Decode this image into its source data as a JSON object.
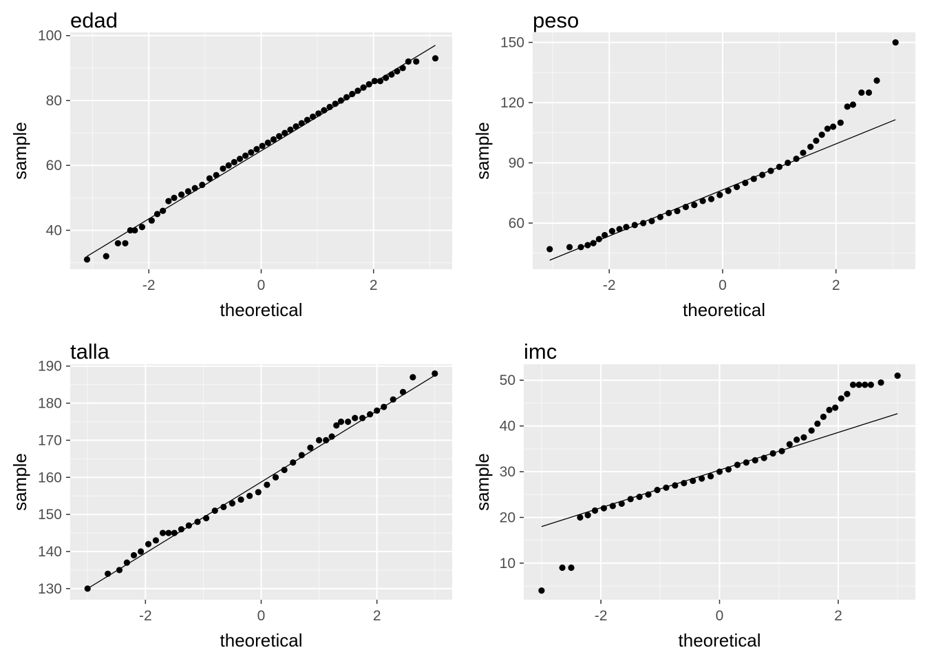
{
  "chart_data": [
    {
      "type": "scatter",
      "title": "edad",
      "xlabel": "theoretical",
      "ylabel": "sample",
      "xlim": [
        -3.4,
        3.4
      ],
      "ylim": [
        28,
        101
      ],
      "xticks": [
        -2,
        0,
        2
      ],
      "xtick_labels": [
        "-2",
        "0",
        "2"
      ],
      "yticks": [
        40,
        60,
        80,
        100
      ],
      "ytick_labels": [
        "40",
        "60",
        "80",
        "100"
      ],
      "grid": true,
      "line": {
        "x": [
          -3.1,
          3.1
        ],
        "y": [
          32,
          97
        ]
      },
      "points": {
        "x": [
          -3.1,
          -2.76,
          -2.55,
          -2.42,
          -2.33,
          -2.25,
          -2.12,
          -1.95,
          -1.85,
          -1.75,
          -1.65,
          -1.55,
          -1.42,
          -1.3,
          -1.18,
          -1.05,
          -0.92,
          -0.8,
          -0.68,
          -0.58,
          -0.48,
          -0.38,
          -0.28,
          -0.18,
          -0.08,
          0.02,
          0.12,
          0.22,
          0.32,
          0.42,
          0.52,
          0.62,
          0.72,
          0.82,
          0.92,
          1.02,
          1.12,
          1.22,
          1.32,
          1.42,
          1.52,
          1.62,
          1.72,
          1.82,
          1.92,
          2.02,
          2.12,
          2.22,
          2.32,
          2.42,
          2.52,
          2.62,
          2.76,
          3.1
        ],
        "y": [
          31,
          32,
          36,
          36,
          40,
          40,
          41,
          43,
          45,
          46,
          49,
          50,
          51,
          52,
          53,
          54,
          56,
          57,
          59,
          60,
          61,
          62,
          63,
          64,
          65,
          66,
          67,
          68,
          69,
          70,
          71,
          72,
          73,
          74,
          75,
          76,
          77,
          78,
          79,
          80,
          81,
          82,
          83,
          84,
          85,
          86,
          86,
          87,
          88,
          89,
          90,
          92,
          92,
          93
        ]
      }
    },
    {
      "type": "scatter",
      "title": "peso",
      "xlabel": "theoretical",
      "ylabel": "sample",
      "xlim": [
        -3.35,
        3.4
      ],
      "ylim": [
        37,
        155
      ],
      "xticks": [
        -2,
        0,
        2
      ],
      "xtick_labels": [
        "-2",
        "0",
        "2"
      ],
      "yticks": [
        60,
        90,
        120,
        150
      ],
      "ytick_labels": [
        "60",
        "90",
        "120",
        "150"
      ],
      "grid": true,
      "line": {
        "x": [
          -3.05,
          3.05
        ],
        "y": [
          41.5,
          111.5
        ]
      },
      "points": {
        "x": [
          -3.05,
          -2.7,
          -2.5,
          -2.38,
          -2.28,
          -2.18,
          -2.08,
          -1.95,
          -1.82,
          -1.7,
          -1.55,
          -1.4,
          -1.25,
          -1.1,
          -0.95,
          -0.8,
          -0.65,
          -0.5,
          -0.35,
          -0.2,
          -0.05,
          0.1,
          0.25,
          0.4,
          0.55,
          0.7,
          0.85,
          1.0,
          1.15,
          1.3,
          1.42,
          1.55,
          1.65,
          1.75,
          1.85,
          1.95,
          2.08,
          2.2,
          2.3,
          2.45,
          2.58,
          2.72,
          3.05
        ],
        "y": [
          47,
          48,
          48,
          49,
          50,
          52,
          54,
          56,
          57,
          58,
          59,
          60,
          61,
          63,
          65,
          66,
          68,
          69,
          71,
          72,
          74,
          76,
          78,
          80,
          82,
          84,
          86,
          88,
          90,
          92,
          95,
          98,
          101,
          104,
          107,
          108,
          110,
          118,
          119,
          125,
          125,
          131,
          150
        ]
      }
    },
    {
      "type": "scatter",
      "title": "talla",
      "xlabel": "theoretical",
      "ylabel": "sample",
      "xlim": [
        -3.3,
        3.3
      ],
      "ylim": [
        127,
        190.5
      ],
      "xticks": [
        -2,
        0,
        2
      ],
      "xtick_labels": [
        "-2",
        "0",
        "2"
      ],
      "yticks": [
        130,
        140,
        150,
        160,
        170,
        180,
        190
      ],
      "ytick_labels": [
        "130",
        "140",
        "150",
        "160",
        "170",
        "180",
        "190"
      ],
      "grid": true,
      "line": {
        "x": [
          -3.0,
          3.0
        ],
        "y": [
          130,
          187.5
        ]
      },
      "points": {
        "x": [
          -3.0,
          -2.65,
          -2.45,
          -2.32,
          -2.2,
          -2.08,
          -1.95,
          -1.82,
          -1.7,
          -1.6,
          -1.5,
          -1.38,
          -1.25,
          -1.1,
          -0.95,
          -0.8,
          -0.65,
          -0.5,
          -0.35,
          -0.2,
          -0.05,
          0.1,
          0.25,
          0.4,
          0.55,
          0.7,
          0.85,
          1.0,
          1.12,
          1.22,
          1.3,
          1.38,
          1.5,
          1.62,
          1.75,
          1.88,
          2.0,
          2.12,
          2.28,
          2.45,
          2.62,
          3.0
        ],
        "y": [
          130,
          134,
          135,
          137,
          139,
          140,
          142,
          143,
          145,
          145,
          145,
          146,
          147,
          148,
          149,
          151,
          152,
          153,
          154,
          155,
          156,
          158,
          160,
          162,
          164,
          166,
          168,
          170,
          170,
          171,
          174,
          175,
          175,
          176,
          176,
          177,
          178,
          179,
          181,
          183,
          187,
          188
        ]
      }
    },
    {
      "type": "scatter",
      "title": "imc",
      "xlabel": "theoretical",
      "ylabel": "sample",
      "xlim": [
        -3.3,
        3.3
      ],
      "ylim": [
        2,
        53.5
      ],
      "xticks": [
        -2,
        0,
        2
      ],
      "xtick_labels": [
        "-2",
        "0",
        "2"
      ],
      "yticks": [
        10,
        20,
        30,
        40,
        50
      ],
      "ytick_labels": [
        "10",
        "20",
        "30",
        "40",
        "50"
      ],
      "grid": true,
      "line": {
        "x": [
          -3.0,
          3.0
        ],
        "y": [
          18,
          42.7
        ]
      },
      "points": {
        "x": [
          -3.0,
          -2.65,
          -2.5,
          -2.35,
          -2.22,
          -2.1,
          -1.95,
          -1.8,
          -1.65,
          -1.5,
          -1.35,
          -1.2,
          -1.05,
          -0.9,
          -0.75,
          -0.6,
          -0.45,
          -0.3,
          -0.15,
          0.0,
          0.15,
          0.3,
          0.45,
          0.6,
          0.75,
          0.9,
          1.05,
          1.18,
          1.3,
          1.42,
          1.55,
          1.65,
          1.75,
          1.85,
          1.95,
          2.05,
          2.15,
          2.25,
          2.35,
          2.45,
          2.55,
          2.72,
          3.0
        ],
        "y": [
          4,
          9,
          9,
          20,
          20.5,
          21.5,
          22,
          22.5,
          23,
          24,
          24.5,
          25,
          26,
          26.5,
          27,
          27.5,
          28,
          28.5,
          29,
          30,
          30.5,
          31.5,
          32,
          32.5,
          33,
          34,
          34.5,
          36,
          37,
          37.5,
          39,
          40.5,
          42,
          43.5,
          44,
          46,
          47,
          49,
          49,
          49,
          49,
          49.5,
          51
        ]
      }
    }
  ]
}
